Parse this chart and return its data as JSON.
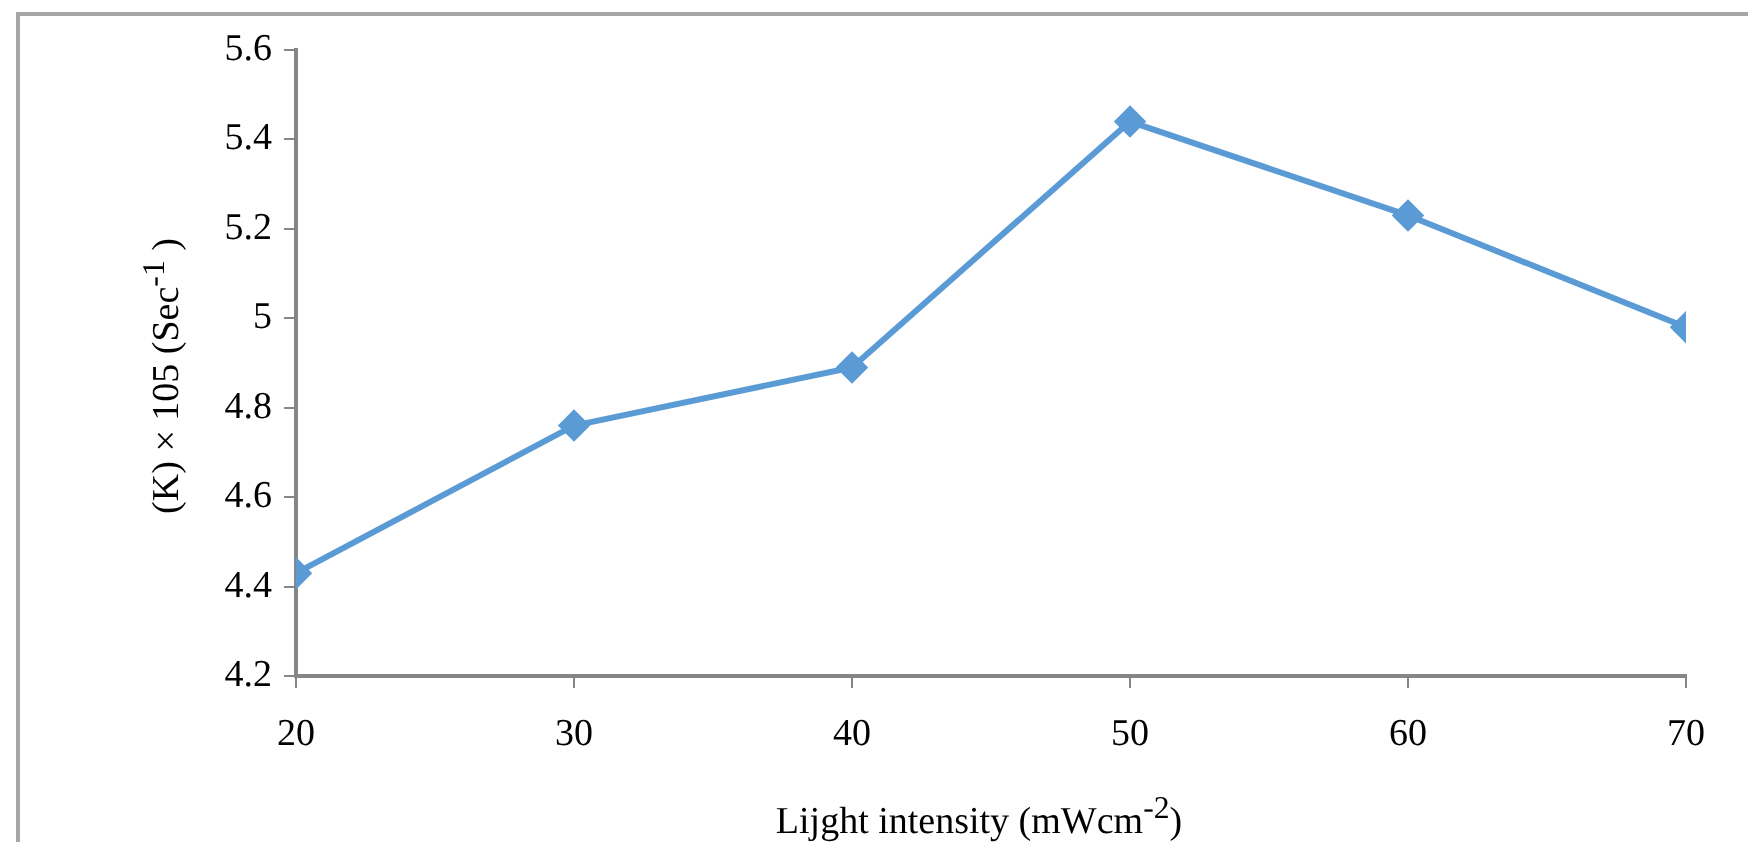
{
  "chart_data": {
    "type": "line",
    "xlabel": "Lijght intensity (mWcm$^{-2}$)",
    "ylabel": "(K) × 105 (Sec$^{-1}$ )",
    "x": [
      20,
      30,
      40,
      50,
      60,
      70
    ],
    "series": [
      {
        "color": "#5b9bd5",
        "values": [
          4.43,
          4.76,
          4.89,
          5.44,
          5.23,
          4.98
        ]
      }
    ],
    "xlim": [
      20,
      70
    ],
    "xticks": [
      20,
      30,
      40,
      50,
      60,
      70
    ],
    "ylim": [
      4.2,
      5.6
    ],
    "yticks": [
      4.2,
      4.4,
      4.6,
      4.8,
      5,
      5.2,
      5.4,
      5.6
    ],
    "grid": false,
    "legend": false,
    "marker": "diamond",
    "line_style": "solid"
  }
}
